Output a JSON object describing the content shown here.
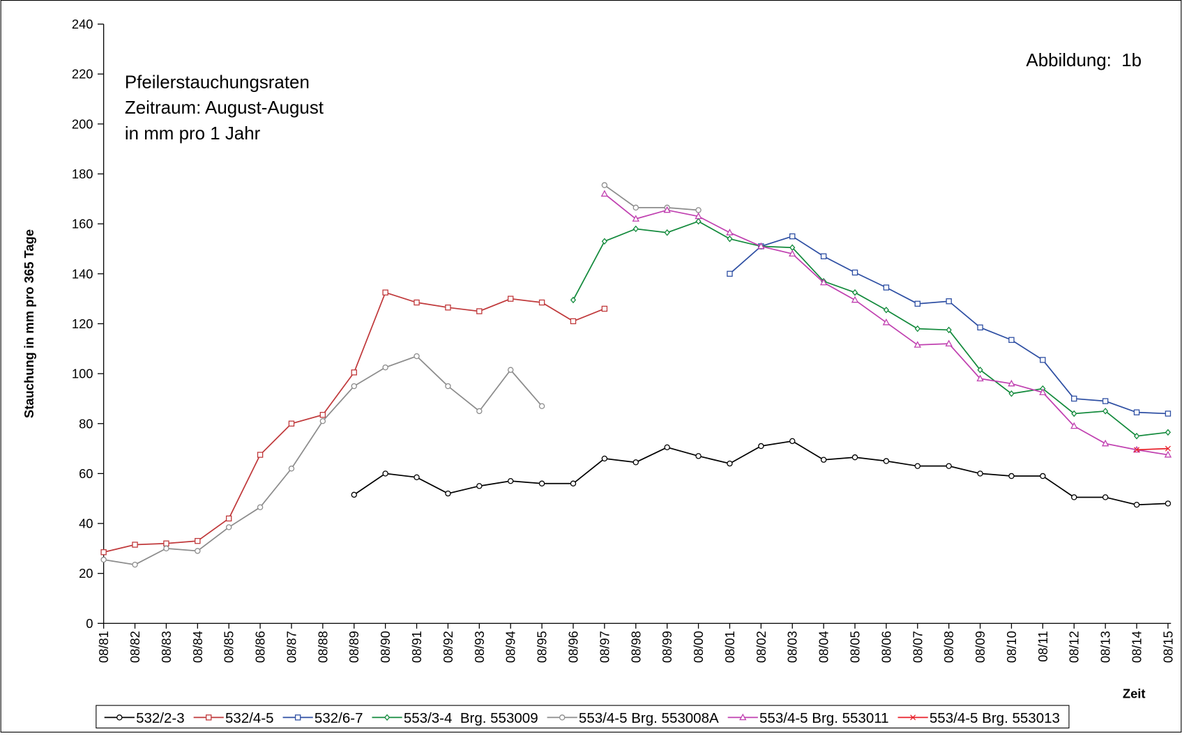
{
  "chart_data": {
    "type": "line",
    "annotations": [
      "Pfeilerstauchungsraten",
      "Zeitraum: August-August",
      "in mm pro 1 Jahr"
    ],
    "figure_label": "Abbildung:  1b",
    "y_label": "Stauchung in mm pro 365 Tage",
    "x_label": "Zeit",
    "categories": [
      "08/81",
      "08/82",
      "08/83",
      "08/84",
      "08/85",
      "08/86",
      "08/87",
      "08/88",
      "08/89",
      "08/90",
      "08/91",
      "08/92",
      "08/93",
      "08/94",
      "08/95",
      "08/96",
      "08/97",
      "08/98",
      "08/99",
      "08/00",
      "08/01",
      "08/02",
      "08/03",
      "08/04",
      "08/05",
      "08/06",
      "08/07",
      "08/08",
      "08/09",
      "08/10",
      "08/11",
      "08/12",
      "08/13",
      "08/14",
      "08/15"
    ],
    "ylim": [
      0,
      240
    ],
    "yticks": [
      0,
      20,
      40,
      60,
      80,
      100,
      120,
      140,
      160,
      180,
      200,
      220,
      240
    ],
    "series": [
      {
        "name": "532/2-3",
        "color": "#000000",
        "marker": "circle",
        "values": [
          null,
          null,
          null,
          null,
          null,
          null,
          null,
          null,
          51.5,
          60,
          58.5,
          52,
          55,
          57,
          56,
          56,
          66,
          64.5,
          70.5,
          67,
          64,
          71,
          73,
          65.5,
          66.5,
          65,
          63,
          63,
          60,
          59,
          59,
          50.5,
          50.5,
          47.5,
          48
        ]
      },
      {
        "name": "532/4-5",
        "color": "#c0393b",
        "marker": "square",
        "values": [
          28.5,
          31.5,
          32,
          33,
          42,
          67.5,
          80,
          83.5,
          100.5,
          132.5,
          128.5,
          126.5,
          125,
          130,
          128.5,
          121,
          126,
          null,
          null,
          null,
          null,
          null,
          null,
          null,
          null,
          null,
          null,
          null,
          null,
          null,
          null,
          null,
          null,
          null,
          null
        ]
      },
      {
        "name": "532/6-7",
        "color": "#2e4fa3",
        "marker": "square",
        "values": [
          null,
          null,
          null,
          null,
          null,
          null,
          null,
          null,
          null,
          null,
          null,
          null,
          null,
          null,
          null,
          null,
          null,
          null,
          null,
          null,
          140,
          151,
          155,
          147,
          140.5,
          134.5,
          128,
          129,
          118.5,
          113.5,
          105.5,
          90,
          89,
          84.5,
          84
        ]
      },
      {
        "name": "553/3-4  Brg. 553009",
        "color": "#138a3c",
        "marker": "diamond",
        "values": [
          null,
          null,
          null,
          null,
          null,
          null,
          null,
          null,
          null,
          null,
          null,
          null,
          null,
          null,
          null,
          129.5,
          153,
          158,
          156.5,
          161,
          154,
          151,
          150.5,
          137,
          132.5,
          125.5,
          118,
          117.5,
          101.5,
          92,
          94,
          84,
          85,
          75,
          76.5
        ]
      },
      {
        "name": "553/4-5 Brg. 553008A",
        "color": "#8c8c8c",
        "marker": "circle",
        "values": [
          25.5,
          23.5,
          30,
          29,
          38.5,
          46.5,
          62,
          81,
          95,
          102.5,
          107,
          95,
          85,
          101.5,
          87,
          null,
          175.5,
          166.5,
          166.5,
          165.5,
          null,
          null,
          null,
          null,
          null,
          null,
          null,
          null,
          null,
          null,
          null,
          null,
          null,
          null,
          null
        ]
      },
      {
        "name": "553/4-5 Brg. 553011",
        "color": "#c040b0",
        "marker": "triangle",
        "values": [
          null,
          null,
          null,
          null,
          null,
          null,
          null,
          null,
          null,
          null,
          null,
          null,
          null,
          null,
          null,
          null,
          172,
          162,
          165.5,
          163,
          156.5,
          151,
          148,
          136.5,
          129.5,
          120.5,
          111.5,
          112,
          98,
          96,
          92.5,
          79,
          72,
          69.5,
          67.5
        ]
      },
      {
        "name": "553/4-5 Brg. 553013",
        "color": "#e8202a",
        "marker": "x",
        "values": [
          null,
          null,
          null,
          null,
          null,
          null,
          null,
          null,
          null,
          null,
          null,
          null,
          null,
          null,
          null,
          null,
          null,
          null,
          null,
          null,
          null,
          null,
          null,
          null,
          null,
          null,
          null,
          null,
          null,
          null,
          null,
          null,
          null,
          69.5,
          70
        ]
      }
    ]
  }
}
